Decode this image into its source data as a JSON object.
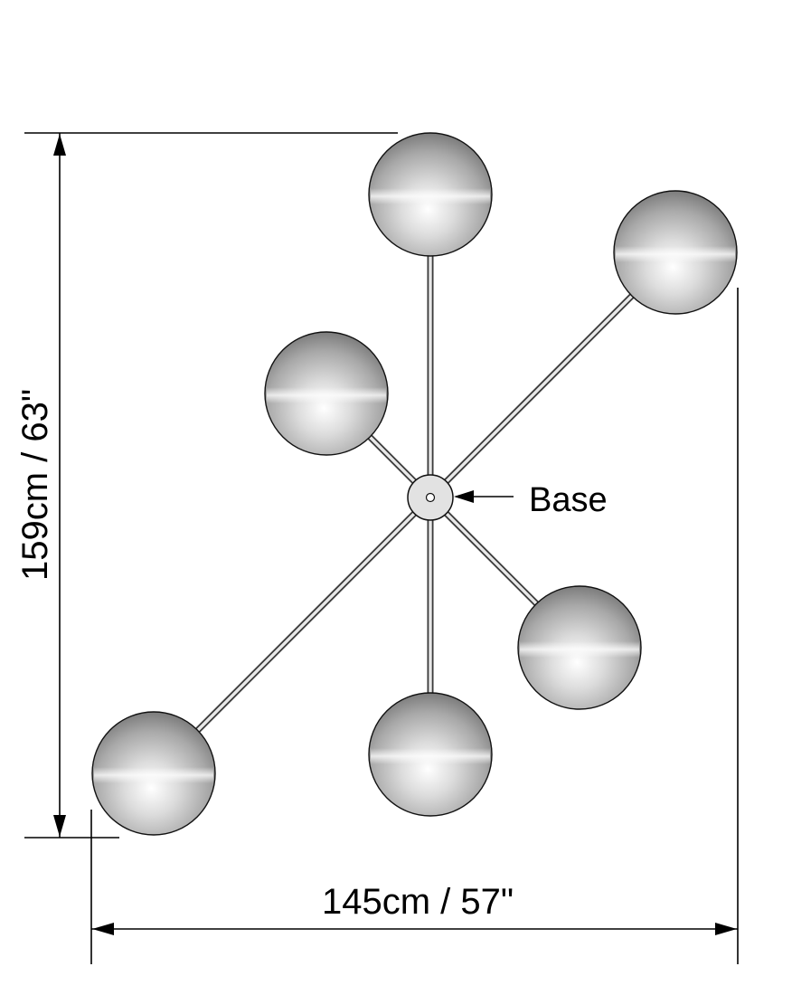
{
  "diagram": {
    "height_dimension_label": "159cm / 63\"",
    "width_dimension_label": "145cm / 57\"",
    "base_label": "Base",
    "globe_count": 6,
    "colors": {
      "line": "#000000",
      "rod": "#3a3a3a",
      "globe_light": "#f4f4f4",
      "globe_dark": "#8a8a8a",
      "base_fill": "#e2e2e2"
    }
  }
}
